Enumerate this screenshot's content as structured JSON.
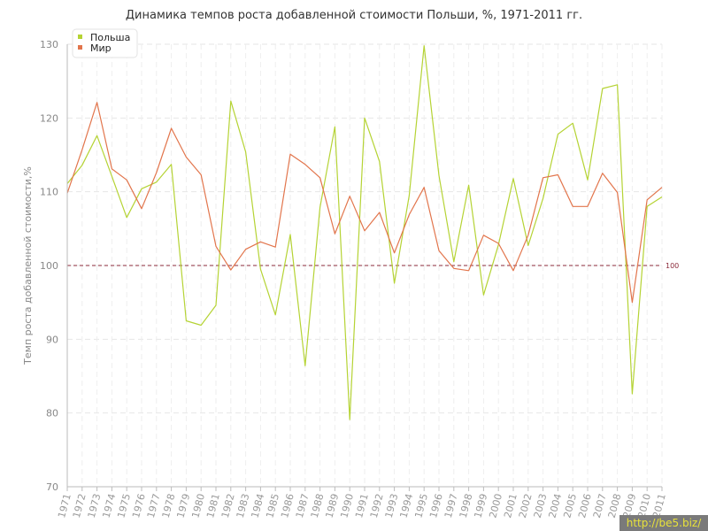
{
  "chart_data": {
    "type": "line",
    "title": "Динамика темпов роста добавленной стоимости Польши, %, 1971-2011 гг.",
    "xlabel": "",
    "ylabel": "Темп роста добавленной стоимости,%",
    "ylim": [
      70,
      130
    ],
    "yticks": [
      70,
      80,
      90,
      100,
      110,
      120,
      130
    ],
    "grid": true,
    "legend": "top-left",
    "categories": [
      "1971",
      "1972",
      "1973",
      "1974",
      "1975",
      "1976",
      "1977",
      "1978",
      "1979",
      "1980",
      "1981",
      "1982",
      "1983",
      "1984",
      "1985",
      "1986",
      "1987",
      "1988",
      "1989",
      "1990",
      "1991",
      "1992",
      "1993",
      "1994",
      "1995",
      "1996",
      "1997",
      "1998",
      "1999",
      "2000",
      "2001",
      "2002",
      "2003",
      "2004",
      "2005",
      "2006",
      "2007",
      "2008",
      "2009",
      "2010",
      "2011"
    ],
    "series": [
      {
        "name": "Польша",
        "color": "#b5d334",
        "values": [
          111.1,
          113.6,
          117.6,
          112.1,
          106.5,
          110.4,
          111.3,
          113.7,
          92.5,
          91.9,
          94.6,
          122.3,
          115.4,
          99.5,
          93.3,
          104.2,
          86.4,
          107.9,
          118.8,
          79.1,
          120.0,
          114.1,
          97.6,
          109.5,
          129.8,
          112.2,
          100.5,
          110.9,
          96.0,
          102.8,
          111.8,
          102.7,
          109.1,
          117.8,
          119.3,
          111.6,
          124.0,
          124.5,
          82.6,
          108.0,
          109.3
        ]
      },
      {
        "name": "Мир",
        "color": "#e2754c",
        "values": [
          109.8,
          115.7,
          122.1,
          113.1,
          111.6,
          107.7,
          112.6,
          118.6,
          114.7,
          112.3,
          102.6,
          99.4,
          102.2,
          103.2,
          102.5,
          115.1,
          113.7,
          111.9,
          104.3,
          109.4,
          104.7,
          107.2,
          101.7,
          106.9,
          110.6,
          102.0,
          99.6,
          99.3,
          104.1,
          103.0,
          99.3,
          104.1,
          111.9,
          112.3,
          108.0,
          108.0,
          112.5,
          109.9,
          95.0,
          108.9,
          110.6
        ]
      }
    ],
    "reference_line": {
      "value": 100,
      "label": "100",
      "color": "#8b2a3a"
    }
  },
  "watermark": "http://be5.biz/"
}
